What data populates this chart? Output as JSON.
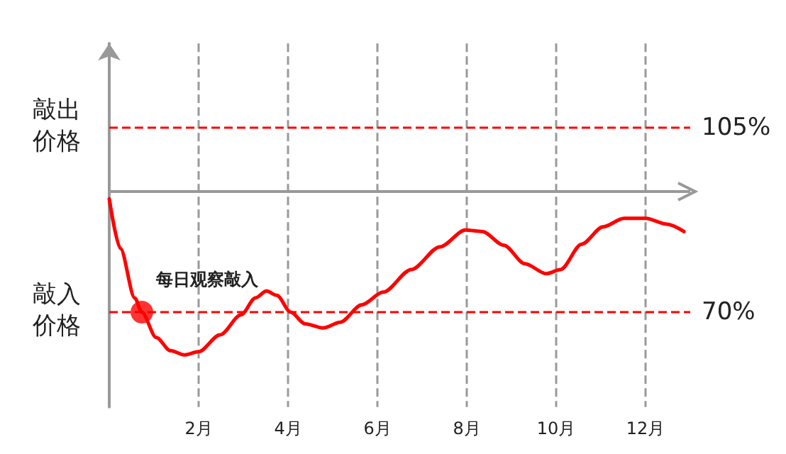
{
  "chart_data": {
    "type": "line",
    "xlim": [
      0,
      13
    ],
    "xticks": [
      {
        "value": 2,
        "label": "2月"
      },
      {
        "value": 4,
        "label": "4月"
      },
      {
        "value": 6,
        "label": "6月"
      },
      {
        "value": 8,
        "label": "8月"
      },
      {
        "value": 10,
        "label": "10月"
      },
      {
        "value": 12,
        "label": "12月"
      }
    ],
    "ylim": [
      52,
      121
    ],
    "tick_labels": "x",
    "grid": "x",
    "series": [
      {
        "color": "#ff0000",
        "marker": "none",
        "x": [
          0,
          0.25,
          0.57,
          0.73,
          1.05,
          1.37,
          1.68,
          2.0,
          2.48,
          2.95,
          3.27,
          3.52,
          3.75,
          4.06,
          4.38,
          4.79,
          5.17,
          5.65,
          6.13,
          6.76,
          7.4,
          7.97,
          8.35,
          8.83,
          9.3,
          9.78,
          10.1,
          10.57,
          11.05,
          11.52,
          12.0,
          12.48,
          12.86
        ],
        "values": [
          91.5,
          82.1,
          72.7,
          70,
          65.2,
          62.7,
          61.9,
          62.5,
          65.7,
          69.5,
          72.7,
          74.0,
          73.2,
          70,
          67.8,
          67.0,
          68.1,
          71.4,
          73.8,
          78.1,
          82.4,
          85.6,
          85.3,
          82.7,
          79.2,
          77.3,
          78.1,
          82.9,
          86.2,
          87.8,
          87.8,
          86.7,
          85.3
        ]
      },
      {
        "type": "scatter",
        "color": "#ff0000",
        "marker": "circle",
        "x": [
          0.73
        ],
        "values": [
          70
        ]
      }
    ],
    "ref_lines": [
      {
        "axis": "y",
        "value": 105,
        "label": "105%",
        "color": "#ff0000",
        "line_style": "dashed"
      },
      {
        "axis": "y",
        "value": 70,
        "label": "70%",
        "color": "#ff0000",
        "line_style": "dashed"
      },
      {
        "axis": "y",
        "value": 92.9,
        "color": "#999999",
        "line_style": "solid"
      }
    ],
    "annotations": [
      "敲出价格",
      "敲入价格",
      {
        "text": "每日观察敲入",
        "x": 0.73,
        "y": 70
      }
    ]
  }
}
